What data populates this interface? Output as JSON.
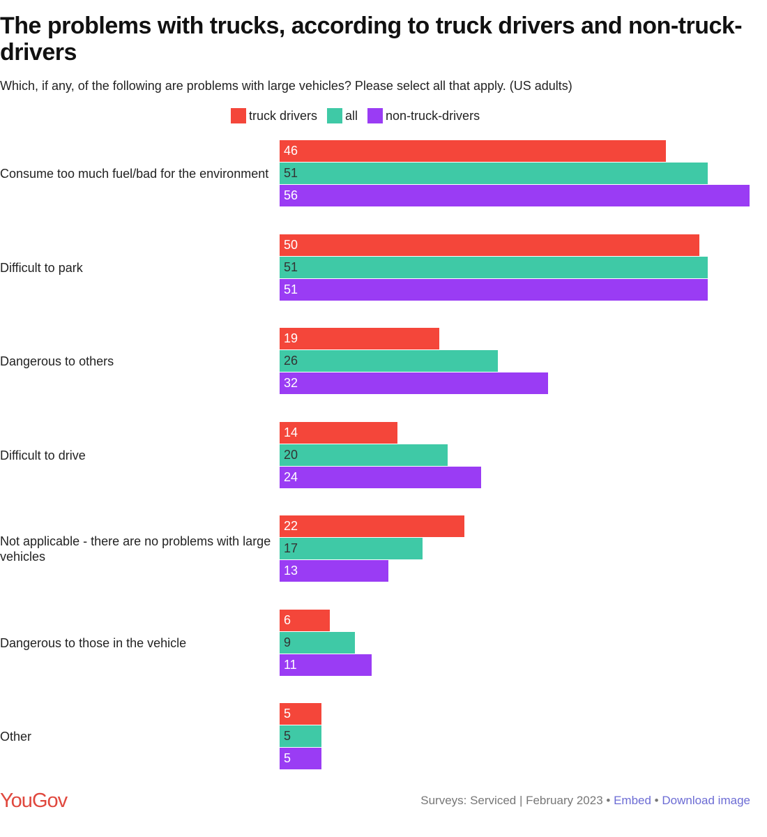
{
  "chart_data": {
    "type": "bar",
    "orientation": "horizontal",
    "title": "The problems with trucks, according to truck drivers and non-truck-drivers",
    "subtitle": "Which, if any, of the following are problems with large vehicles? Please select all that apply. (US adults)",
    "categories": [
      "Consume too much fuel/bad for the environment",
      "Difficult to park",
      "Dangerous to others",
      "Difficult to drive",
      "Not applicable - there are no problems with large vehicles",
      "Dangerous to those in the vehicle",
      "Other"
    ],
    "series": [
      {
        "name": "truck drivers",
        "color": "#f4463a",
        "label_color": "#ffffff",
        "values": [
          46,
          50,
          19,
          14,
          22,
          6,
          5
        ]
      },
      {
        "name": "all",
        "color": "#3fc9a6",
        "label_color": "#333333",
        "values": [
          51,
          51,
          26,
          20,
          17,
          9,
          5
        ]
      },
      {
        "name": "non-truck-drivers",
        "color": "#9a3cf4",
        "label_color": "#ffffff",
        "values": [
          56,
          51,
          32,
          24,
          13,
          11,
          5
        ]
      }
    ],
    "xlim": [
      0,
      56
    ],
    "legend": "top-center",
    "grid": false
  },
  "footer": {
    "logo": "YouGov",
    "source": "Surveys: Serviced | February 2023",
    "sep": " • ",
    "embed": "Embed",
    "download": "Download image"
  }
}
